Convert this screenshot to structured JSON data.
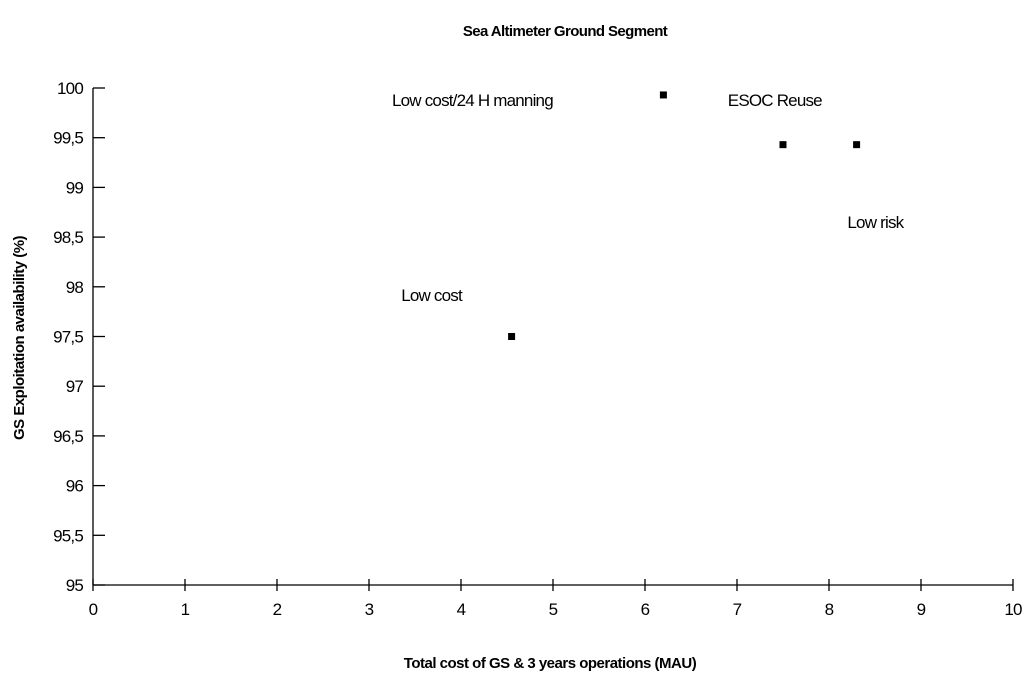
{
  "chart_data": {
    "type": "scatter",
    "title": "Sea Altimeter Ground Segment",
    "xlabel": "Total cost of GS & 3 years operations (MAU)",
    "ylabel": "GS Exploitation availability (%)",
    "xlim": [
      0,
      10
    ],
    "ylim": [
      95,
      100
    ],
    "x_ticks": [
      "0",
      "1",
      "2",
      "3",
      "4",
      "5",
      "6",
      "7",
      "8",
      "9",
      "10"
    ],
    "y_ticks": [
      "95",
      "95,5",
      "96",
      "96,5",
      "97",
      "97,5",
      "98",
      "98,5",
      "99",
      "99,5",
      "100"
    ],
    "grid": false,
    "points": [
      {
        "x": 4.55,
        "y": 97.5
      },
      {
        "x": 6.2,
        "y": 99.93
      },
      {
        "x": 7.5,
        "y": 99.43
      },
      {
        "x": 8.3,
        "y": 99.43
      }
    ],
    "annotations": [
      {
        "text": "Low cost",
        "x": 3.35,
        "y": 97.92
      },
      {
        "text": "Low cost/24 H manning",
        "x": 3.25,
        "y": 99.88
      },
      {
        "text": "ESOC Reuse",
        "x": 6.9,
        "y": 99.88
      },
      {
        "text": "Low risk",
        "x": 8.2,
        "y": 98.65
      }
    ]
  }
}
